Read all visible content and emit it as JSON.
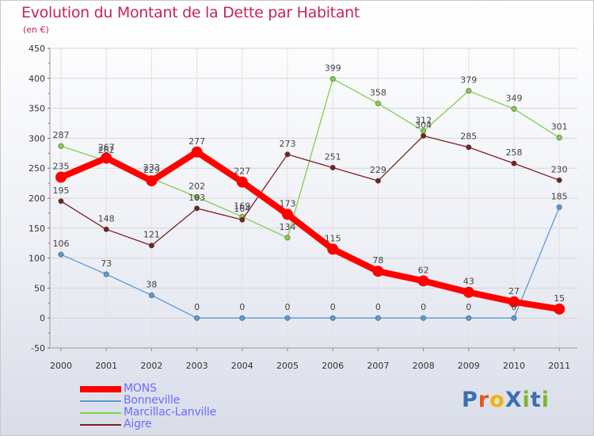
{
  "title": "Evolution du Montant de la Dette par Habitant",
  "subtitle": "(en €)",
  "logo_text": "ProXiti",
  "logo_colors": [
    "#3a6fb0",
    "#e8541e",
    "#f0b400",
    "#3a6fb0",
    "#7fb531",
    "#3a6fb0",
    "#7fb531"
  ],
  "chart_data": {
    "type": "line",
    "title": "Evolution du Montant de la Dette par Habitant",
    "subtitle": "(en €)",
    "xlabel": "",
    "ylabel": "",
    "x": [
      "2000",
      "2001",
      "2002",
      "2003",
      "2004",
      "2005",
      "2006",
      "2007",
      "2008",
      "2009",
      "2010",
      "2011"
    ],
    "ylim": [
      -50,
      450
    ],
    "yticks": [
      -50,
      0,
      50,
      100,
      150,
      200,
      250,
      300,
      350,
      400,
      450
    ],
    "grid": true,
    "legend_position": "bottom-left",
    "series": [
      {
        "name": "MONS",
        "color": "#ff0000",
        "emphasis": true,
        "values": [
          235,
          267,
          229,
          277,
          227,
          173,
          115,
          78,
          62,
          43,
          27,
          15
        ]
      },
      {
        "name": "Bonneville",
        "color": "#5b9bd5",
        "emphasis": false,
        "values": [
          106,
          73,
          38,
          0,
          0,
          0,
          0,
          0,
          0,
          0,
          0,
          185
        ]
      },
      {
        "name": "Marcillac-Lanville",
        "color": "#7fd04a",
        "emphasis": false,
        "values": [
          287,
          262,
          233,
          202,
          169,
          134,
          399,
          358,
          312,
          379,
          349,
          301
        ]
      },
      {
        "name": "Aigre",
        "color": "#7a1f1f",
        "emphasis": false,
        "values": [
          195,
          148,
          121,
          183,
          164,
          273,
          251,
          229,
          304,
          285,
          258,
          230
        ]
      }
    ]
  }
}
